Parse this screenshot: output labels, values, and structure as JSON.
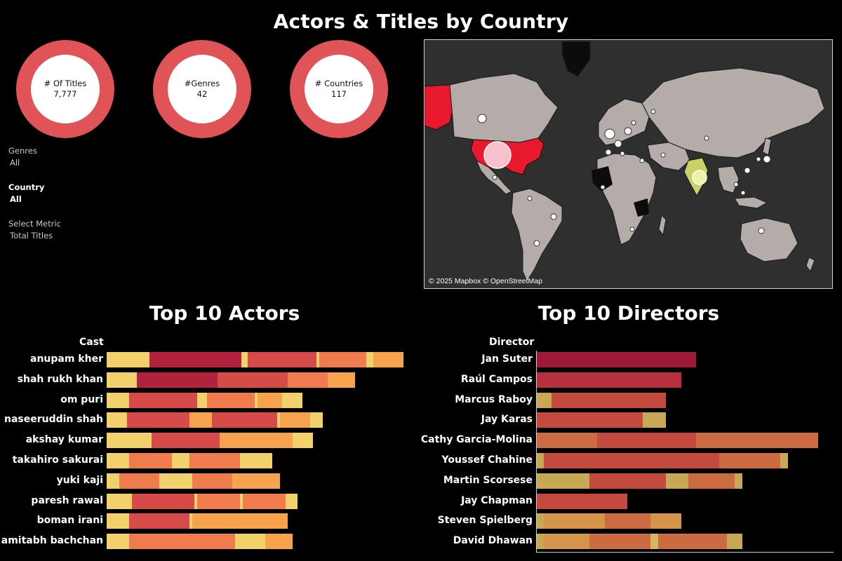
{
  "title": "Actors & Titles by Country",
  "kpis": [
    {
      "label": "# Of Titles",
      "value": "7,777"
    },
    {
      "label": "#Genres",
      "value": "42"
    },
    {
      "label": "# Countries",
      "value": "117"
    }
  ],
  "filters": [
    {
      "label": "Genres",
      "value": "All"
    },
    {
      "label": "Country",
      "value": "All"
    },
    {
      "label": "Select Metric",
      "value": "Total Titles"
    }
  ],
  "map": {
    "credit": "© 2025 Mapbox © OpenStreetMap"
  },
  "colors": {
    "kpi_ring": "#e05458",
    "accent_red": "#e8192c",
    "land": "#b3aca9",
    "ocean": "#2f2f2f"
  },
  "chart_data": [
    {
      "type": "bar",
      "orientation": "horizontal",
      "stacked": true,
      "title": "Top 10 Actors",
      "ylabel": "Cast",
      "categories": [
        "anupam kher",
        "shah rukh khan",
        "om puri",
        "naseeruddin shah",
        "akshay kumar",
        "takahiro sakurai",
        "yuki kaji",
        "paresh rawal",
        "boman irani",
        "amitabh bachchan"
      ],
      "segment_palette": [
        "#f2d06b",
        "#b2223c",
        "#d64a49",
        "#ef7b4f",
        "#f7a24d",
        "#f9c35a"
      ],
      "stack_segments": [
        [
          [
            61,
            "#f2d06b"
          ],
          [
            131,
            "#b2223c"
          ],
          [
            9,
            "#f2d06b"
          ],
          [
            98,
            "#d64a49"
          ],
          [
            4,
            "#f2d06b"
          ],
          [
            67,
            "#ef7b4f"
          ],
          [
            10,
            "#f2d06b"
          ],
          [
            43,
            "#f7a24d"
          ]
        ],
        [
          [
            43,
            "#f2d06b"
          ],
          [
            115,
            "#b2223c"
          ],
          [
            100,
            "#d64a49"
          ],
          [
            57,
            "#ef7b4f"
          ],
          [
            39,
            "#f7a24d"
          ]
        ],
        [
          [
            32,
            "#f2d06b"
          ],
          [
            97,
            "#d64a49"
          ],
          [
            14,
            "#f2d06b"
          ],
          [
            68,
            "#ef7b4f"
          ],
          [
            4,
            "#f2d06b"
          ],
          [
            35,
            "#f7a24d"
          ],
          [
            29,
            "#f2d06b"
          ]
        ],
        [
          [
            29,
            "#f2d06b"
          ],
          [
            89,
            "#d64a49"
          ],
          [
            32,
            "#f7a24d"
          ],
          [
            93,
            "#d64a49"
          ],
          [
            4,
            "#f2d06b"
          ],
          [
            43,
            "#f7a24d"
          ],
          [
            18,
            "#f2d06b"
          ]
        ],
        [
          [
            64,
            "#f2d06b"
          ],
          [
            97,
            "#d64a49"
          ],
          [
            104,
            "#f7a24d"
          ],
          [
            29,
            "#f2d06b"
          ]
        ],
        [
          [
            32,
            "#f2d06b"
          ],
          [
            61,
            "#ef7b4f"
          ],
          [
            25,
            "#f2d06b"
          ],
          [
            72,
            "#ef7b4f"
          ],
          [
            46,
            "#f2d06b"
          ]
        ],
        [
          [
            18,
            "#f2d06b"
          ],
          [
            57,
            "#ef7b4f"
          ],
          [
            47,
            "#f2d06b"
          ],
          [
            57,
            "#ef7b4f"
          ],
          [
            68,
            "#f7a24d"
          ]
        ],
        [
          [
            36,
            "#f2d06b"
          ],
          [
            89,
            "#d64a49"
          ],
          [
            4,
            "#f2d06b"
          ],
          [
            61,
            "#ef7b4f"
          ],
          [
            4,
            "#f2d06b"
          ],
          [
            61,
            "#ef7b4f"
          ],
          [
            17,
            "#f2d06b"
          ]
        ],
        [
          [
            32,
            "#f2d06b"
          ],
          [
            86,
            "#d64a49"
          ],
          [
            4,
            "#f2d06b"
          ],
          [
            136,
            "#f7a24d"
          ]
        ],
        [
          [
            32,
            "#f2d06b"
          ],
          [
            151,
            "#ef7b4f"
          ],
          [
            43,
            "#f2d06b"
          ],
          [
            39,
            "#f7a24d"
          ]
        ]
      ]
    },
    {
      "type": "bar",
      "orientation": "horizontal",
      "stacked": true,
      "title": "Top 10 Directors",
      "ylabel": "Director",
      "categories": [
        "Jan Suter",
        "Raúl Campos",
        "Marcus Raboy",
        "Jay Karas",
        "Cathy Garcia-Molina",
        "Youssef Chahine",
        "Martin Scorsese",
        "Jay Chapman",
        "Steven Spielberg",
        "David Dhawan"
      ],
      "segment_palette": [
        "#9c1a36",
        "#b7303d",
        "#c44a3f",
        "#cc6a41",
        "#d4944a",
        "#c8a854",
        "#d6b75d"
      ],
      "stack_segments": [
        [
          [
            227,
            "#9c1a36"
          ]
        ],
        [
          [
            206,
            "#b7303d"
          ]
        ],
        [
          [
            21,
            "#c8a854"
          ],
          [
            163,
            "#c44a3f"
          ]
        ],
        [
          [
            151,
            "#c44a3f"
          ],
          [
            33,
            "#c8a854"
          ]
        ],
        [
          [
            86,
            "#cc6a41"
          ],
          [
            141,
            "#c44a3f"
          ],
          [
            98,
            "#cc6a41"
          ],
          [
            76,
            "#cc6a41"
          ]
        ],
        [
          [
            10,
            "#c8a854"
          ],
          [
            250,
            "#c44a3f"
          ],
          [
            87,
            "#cc6a41"
          ],
          [
            11,
            "#c8a854"
          ]
        ],
        [
          [
            21,
            "#c8a854"
          ],
          [
            54,
            "#c8a854"
          ],
          [
            109,
            "#c44a3f"
          ],
          [
            32,
            "#c8a854"
          ],
          [
            66,
            "#cc6a41"
          ],
          [
            11,
            "#c8a854"
          ]
        ],
        [
          [
            129,
            "#c44a3f"
          ]
        ],
        [
          [
            10,
            "#c8a854"
          ],
          [
            87,
            "#d4944a"
          ],
          [
            65,
            "#cc6a41"
          ],
          [
            44,
            "#d4944a"
          ]
        ],
        [
          [
            10,
            "#c8a854"
          ],
          [
            65,
            "#d4944a"
          ],
          [
            87,
            "#cc6a41"
          ],
          [
            11,
            "#d6b75d"
          ],
          [
            98,
            "#cc6a41"
          ],
          [
            22,
            "#c8a854"
          ]
        ]
      ]
    }
  ]
}
